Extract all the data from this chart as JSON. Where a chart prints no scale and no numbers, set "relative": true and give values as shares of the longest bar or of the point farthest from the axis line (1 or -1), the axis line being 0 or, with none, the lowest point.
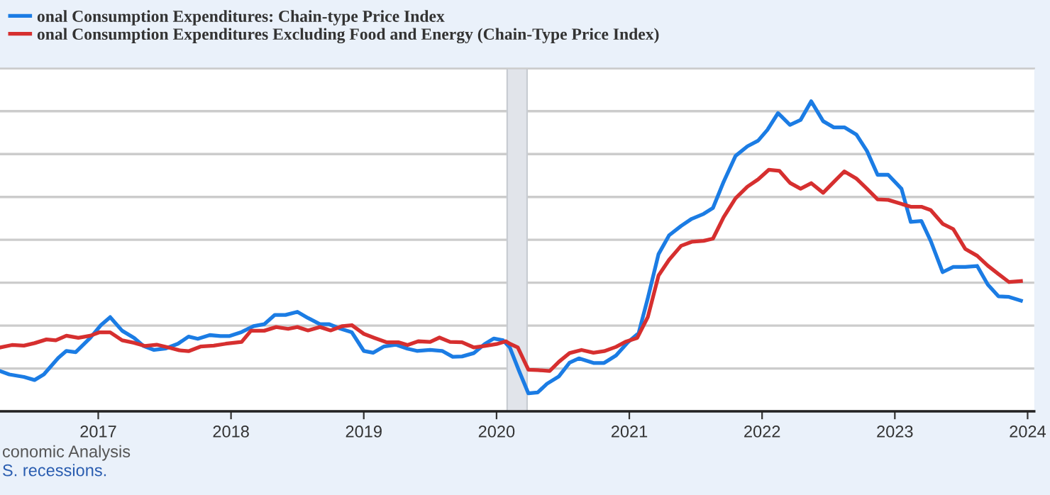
{
  "chart_data": {
    "type": "line",
    "relative": true,
    "xlim": [
      2016.26,
      2024.05
    ],
    "xticks": [
      2017,
      2018,
      2019,
      2020,
      2021,
      2022,
      2023,
      2024
    ],
    "grid": "y",
    "legend": "top left",
    "marker": "none",
    "line_style": "solid",
    "bands": [
      {
        "axis": "x",
        "from": 2020.08,
        "to": 2020.23,
        "color": "#e1e4ea"
      }
    ],
    "annotations": [
      "conomic Analysis",
      "S. recessions."
    ],
    "series": [
      {
        "name": "onal Consumption Expenditures: Chain-type Price Index",
        "color": "#1b7ce4",
        "x": [
          2016.26,
          2016.33,
          2016.44,
          2016.52,
          2016.59,
          2016.7,
          2016.76,
          2016.83,
          2016.94,
          2017.02,
          2017.09,
          2017.18,
          2017.27,
          2017.34,
          2017.42,
          2017.51,
          2017.6,
          2017.68,
          2017.75,
          2017.84,
          2017.92,
          2017.99,
          2018.08,
          2018.17,
          2018.25,
          2018.33,
          2018.41,
          2018.5,
          2018.58,
          2018.67,
          2018.74,
          2018.82,
          2018.91,
          2019.0,
          2019.07,
          2019.15,
          2019.24,
          2019.33,
          2019.4,
          2019.5,
          2019.59,
          2019.67,
          2019.74,
          2019.83,
          2019.91,
          2019.98,
          2020.05,
          2020.1,
          2020.17,
          2020.24,
          2020.31,
          2020.38,
          2020.47,
          2020.55,
          2020.62,
          2020.73,
          2020.81,
          2020.9,
          2020.99,
          2021.07,
          2021.14,
          2021.22,
          2021.3,
          2021.39,
          2021.47,
          2021.56,
          2021.63,
          2021.71,
          2021.8,
          2021.89,
          2021.97,
          2022.04,
          2022.12,
          2022.21,
          2022.29,
          2022.37,
          2022.46,
          2022.54,
          2022.62,
          2022.71,
          2022.79,
          2022.87,
          2022.95,
          2023.05,
          2023.12,
          2023.2,
          2023.27,
          2023.36,
          2023.44,
          2023.53,
          2023.62,
          2023.7,
          2023.78,
          2023.86,
          2023.95
        ],
        "values": [
          0.13,
          0.119,
          0.111,
          0.101,
          0.119,
          0.173,
          0.195,
          0.191,
          0.237,
          0.278,
          0.304,
          0.26,
          0.237,
          0.211,
          0.198,
          0.203,
          0.218,
          0.241,
          0.234,
          0.246,
          0.243,
          0.243,
          0.256,
          0.275,
          0.281,
          0.311,
          0.311,
          0.321,
          0.301,
          0.281,
          0.281,
          0.267,
          0.255,
          0.195,
          0.189,
          0.209,
          0.215,
          0.202,
          0.195,
          0.198,
          0.195,
          0.176,
          0.177,
          0.188,
          0.217,
          0.235,
          0.229,
          0.206,
          0.13,
          0.058,
          0.061,
          0.089,
          0.113,
          0.157,
          0.171,
          0.156,
          0.156,
          0.18,
          0.223,
          0.252,
          0.366,
          0.507,
          0.568,
          0.598,
          0.621,
          0.637,
          0.656,
          0.74,
          0.824,
          0.855,
          0.873,
          0.908,
          0.962,
          0.924,
          0.94,
          1.0,
          0.936,
          0.916,
          0.916,
          0.893,
          0.84,
          0.763,
          0.763,
          0.718,
          0.611,
          0.614,
          0.55,
          0.449,
          0.466,
          0.466,
          0.469,
          0.409,
          0.371,
          0.369,
          0.357
        ]
      },
      {
        "name": "onal Consumption Expenditures Excluding Food and Energy (Chain-Type Price Index)",
        "color": "#d62f2f",
        "x": [
          2016.26,
          2016.35,
          2016.44,
          2016.52,
          2016.61,
          2016.68,
          2016.76,
          2016.85,
          2016.94,
          2017.01,
          2017.09,
          2017.18,
          2017.27,
          2017.35,
          2017.44,
          2017.53,
          2017.61,
          2017.68,
          2017.77,
          2017.87,
          2017.96,
          2018.08,
          2018.15,
          2018.25,
          2018.34,
          2018.43,
          2018.5,
          2018.58,
          2018.67,
          2018.75,
          2018.84,
          2018.91,
          2019.0,
          2019.08,
          2019.17,
          2019.26,
          2019.33,
          2019.41,
          2019.5,
          2019.57,
          2019.65,
          2019.74,
          2019.83,
          2019.91,
          2020.0,
          2020.07,
          2020.1,
          2020.16,
          2020.24,
          2020.31,
          2020.4,
          2020.47,
          2020.55,
          2020.64,
          2020.73,
          2020.81,
          2020.9,
          2020.97,
          2021.06,
          2021.14,
          2021.22,
          2021.3,
          2021.39,
          2021.47,
          2021.56,
          2021.63,
          2021.71,
          2021.8,
          2021.89,
          2021.97,
          2022.05,
          2022.13,
          2022.21,
          2022.29,
          2022.37,
          2022.46,
          2022.54,
          2022.62,
          2022.71,
          2022.79,
          2022.87,
          2022.95,
          2023.05,
          2023.12,
          2023.2,
          2023.27,
          2023.36,
          2023.44,
          2023.53,
          2023.62,
          2023.7,
          2023.78,
          2023.86,
          2023.95
        ],
        "values": [
          0.206,
          0.214,
          0.212,
          0.22,
          0.232,
          0.229,
          0.244,
          0.237,
          0.244,
          0.255,
          0.255,
          0.229,
          0.221,
          0.211,
          0.215,
          0.206,
          0.197,
          0.194,
          0.209,
          0.212,
          0.218,
          0.224,
          0.26,
          0.26,
          0.272,
          0.266,
          0.272,
          0.261,
          0.272,
          0.261,
          0.275,
          0.278,
          0.25,
          0.237,
          0.223,
          0.223,
          0.214,
          0.226,
          0.224,
          0.238,
          0.224,
          0.223,
          0.206,
          0.211,
          0.217,
          0.226,
          0.218,
          0.206,
          0.134,
          0.133,
          0.13,
          0.16,
          0.188,
          0.198,
          0.189,
          0.194,
          0.208,
          0.224,
          0.237,
          0.305,
          0.438,
          0.489,
          0.534,
          0.547,
          0.55,
          0.557,
          0.626,
          0.687,
          0.725,
          0.748,
          0.779,
          0.776,
          0.737,
          0.718,
          0.736,
          0.705,
          0.74,
          0.774,
          0.751,
          0.718,
          0.684,
          0.682,
          0.669,
          0.66,
          0.66,
          0.649,
          0.605,
          0.588,
          0.524,
          0.502,
          0.47,
          0.443,
          0.417,
          0.42
        ]
      }
    ]
  }
}
